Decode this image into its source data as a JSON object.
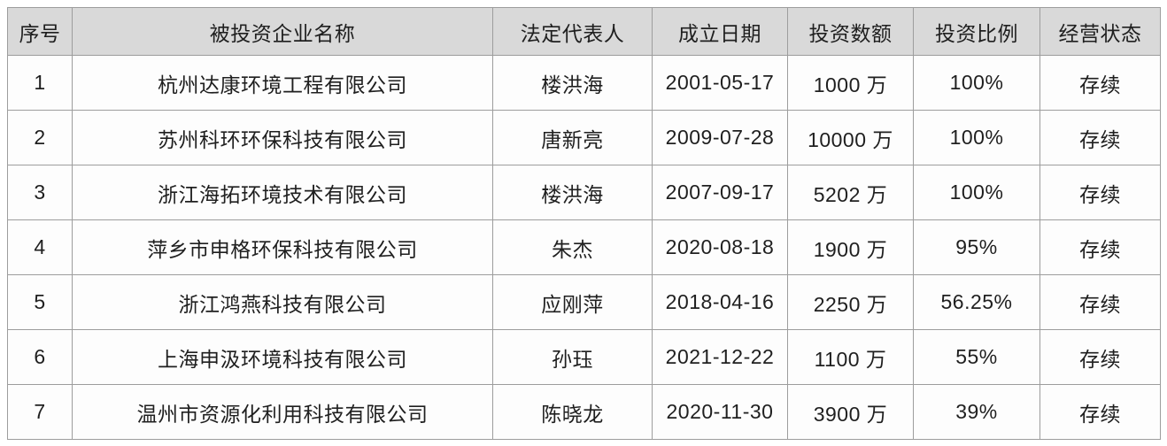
{
  "chart_data": {
    "type": "table",
    "title": "",
    "columns": [
      "序号",
      "被投资企业名称",
      "法定代表人",
      "成立日期",
      "投资数额",
      "投资比例",
      "经营状态"
    ],
    "rows": [
      [
        "1",
        "杭州达康环境工程有限公司",
        "楼洪海",
        "2001-05-17",
        "1000 万",
        "100%",
        "存续"
      ],
      [
        "2",
        "苏州科环环保科技有限公司",
        "唐新亮",
        "2009-07-28",
        "10000 万",
        "100%",
        "存续"
      ],
      [
        "3",
        "浙江海拓环境技术有限公司",
        "楼洪海",
        "2007-09-17",
        "5202 万",
        "100%",
        "存续"
      ],
      [
        "4",
        "萍乡市申格环保科技有限公司",
        "朱杰",
        "2020-08-18",
        "1900 万",
        "95%",
        "存续"
      ],
      [
        "5",
        "浙江鸿燕科技有限公司",
        "应刚萍",
        "2018-04-16",
        "2250 万",
        "56.25%",
        "存续"
      ],
      [
        "6",
        "上海申汲环境科技有限公司",
        "孙珏",
        "2021-12-22",
        "1100 万",
        "55%",
        "存续"
      ],
      [
        "7",
        "温州市资源化利用科技有限公司",
        "陈晓龙",
        "2020-11-30",
        "3900 万",
        "39%",
        "存续"
      ]
    ],
    "colors": {
      "header_bg": "#d9d9d9",
      "row_bg": "#fdfdfd",
      "border": "#9d9d9d",
      "text": "#1f1f1f",
      "page_bg": "#ffffff"
    }
  }
}
